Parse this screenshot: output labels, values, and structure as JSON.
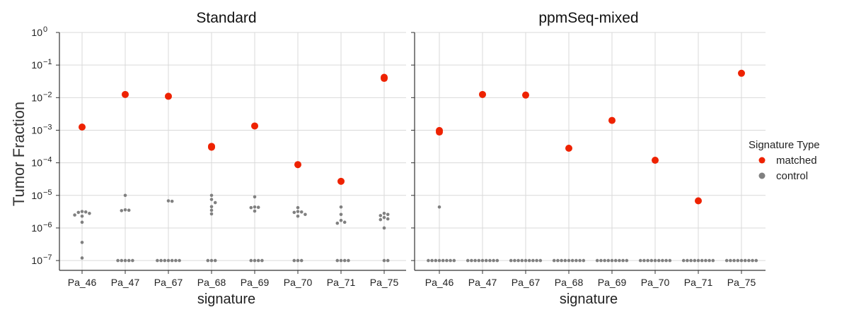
{
  "chart_data": {
    "type": "scatter",
    "ylabel": "Tumor Fraction",
    "yscale": "log",
    "ylim": [
      5e-08,
      1
    ],
    "yticks": [
      {
        "value": 1e-07,
        "base": "10",
        "exp": "−7"
      },
      {
        "value": 1e-06,
        "base": "10",
        "exp": "−6"
      },
      {
        "value": 1e-05,
        "base": "10",
        "exp": "−5"
      },
      {
        "value": 0.0001,
        "base": "10",
        "exp": "−4"
      },
      {
        "value": 0.001,
        "base": "10",
        "exp": "−3"
      },
      {
        "value": 0.01,
        "base": "10",
        "exp": "−2"
      },
      {
        "value": 0.1,
        "base": "10",
        "exp": "−1"
      },
      {
        "value": 1,
        "base": "10",
        "exp": "0"
      }
    ],
    "grid": true,
    "legend": {
      "title": "Signature Type",
      "placement": "right",
      "entries": [
        {
          "label": "matched",
          "color": "#ee2200"
        },
        {
          "label": "control",
          "color": "#808080"
        }
      ]
    },
    "panels": [
      {
        "title": "Standard",
        "xlabel": "signature",
        "categories": [
          "Pa_46",
          "Pa_47",
          "Pa_67",
          "Pa_68",
          "Pa_69",
          "Pa_70",
          "Pa_71",
          "Pa_75"
        ],
        "matched": [
          [
            0.00125
          ],
          [
            0.0125
          ],
          [
            0.011
          ],
          [
            0.00032,
            0.0003
          ],
          [
            0.00135
          ],
          [
            8.8e-05
          ],
          [
            2.7e-05
          ],
          [
            0.042,
            0.039
          ]
        ],
        "control": [
          [
            3.2e-06,
            3.1e-06,
            3e-06,
            2.8e-06,
            2.5e-06,
            2.3e-06,
            1.5e-06,
            3.6e-07,
            1.2e-07
          ],
          [
            1e-05,
            3.6e-06,
            3.5e-06,
            3.4e-06,
            1e-07,
            1e-07,
            1e-07,
            1e-07,
            1e-07
          ],
          [
            6.8e-06,
            6.6e-06,
            1e-07,
            1e-07,
            1e-07,
            1e-07,
            1e-07,
            1e-07,
            1e-07
          ],
          [
            1e-05,
            7.5e-06,
            6e-06,
            4.5e-06,
            3.5e-06,
            2.7e-06,
            1e-07,
            1e-07,
            1e-07
          ],
          [
            9e-06,
            4.4e-06,
            4.3e-06,
            4.2e-06,
            3.3e-06,
            1e-07,
            1e-07,
            1e-07,
            1e-07
          ],
          [
            4.2e-06,
            3.2e-06,
            3.1e-06,
            3e-06,
            2.6e-06,
            2.3e-06,
            1e-07,
            1e-07,
            1e-07
          ],
          [
            4.4e-06,
            2.6e-06,
            1.7e-06,
            1.5e-06,
            1.4e-06,
            1e-07,
            1e-07,
            1e-07,
            1e-07
          ],
          [
            2.8e-06,
            2.6e-06,
            2.4e-06,
            2.1e-06,
            1.9e-06,
            1.8e-06,
            1e-06,
            1e-07,
            1e-07
          ]
        ]
      },
      {
        "title": "ppmSeq-mixed",
        "xlabel": "signature",
        "categories": [
          "Pa_46",
          "Pa_47",
          "Pa_67",
          "Pa_68",
          "Pa_69",
          "Pa_70",
          "Pa_71",
          "Pa_75"
        ],
        "matched": [
          [
            0.00098,
            0.00088
          ],
          [
            0.0125
          ],
          [
            0.012
          ],
          [
            0.00028
          ],
          [
            0.002
          ],
          [
            0.00012
          ],
          [
            6.8e-06
          ],
          [
            0.056
          ]
        ],
        "control": [
          [
            4.4e-06,
            1e-07,
            1e-07,
            1e-07,
            1e-07,
            1e-07,
            1e-07,
            1e-07,
            1e-07
          ],
          [
            1e-07,
            1e-07,
            1e-07,
            1e-07,
            1e-07,
            1e-07,
            1e-07,
            1e-07,
            1e-07
          ],
          [
            1e-07,
            1e-07,
            1e-07,
            1e-07,
            1e-07,
            1e-07,
            1e-07,
            1e-07,
            1e-07
          ],
          [
            1e-07,
            1e-07,
            1e-07,
            1e-07,
            1e-07,
            1e-07,
            1e-07,
            1e-07,
            1e-07
          ],
          [
            1e-07,
            1e-07,
            1e-07,
            1e-07,
            1e-07,
            1e-07,
            1e-07,
            1e-07,
            1e-07
          ],
          [
            1e-07,
            1e-07,
            1e-07,
            1e-07,
            1e-07,
            1e-07,
            1e-07,
            1e-07,
            1e-07
          ],
          [
            1e-07,
            1e-07,
            1e-07,
            1e-07,
            1e-07,
            1e-07,
            1e-07,
            1e-07,
            1e-07
          ],
          [
            1e-07,
            1e-07,
            1e-07,
            1e-07,
            1e-07,
            1e-07,
            1e-07,
            1e-07,
            1e-07
          ]
        ]
      }
    ]
  }
}
